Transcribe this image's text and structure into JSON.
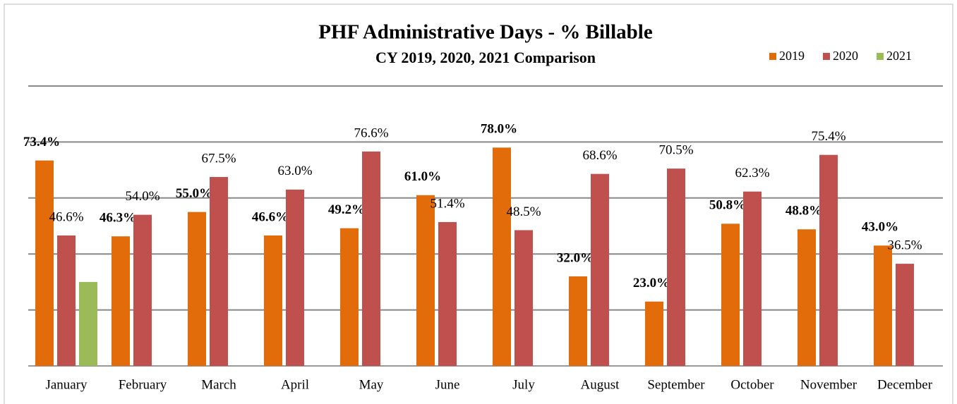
{
  "chart_data": {
    "type": "bar",
    "title": "PHF Administrative Days - % Billable",
    "subtitle": "CY 2019, 2020, 2021 Comparison",
    "categories": [
      "January",
      "February",
      "March",
      "April",
      "May",
      "June",
      "July",
      "August",
      "September",
      "October",
      "November",
      "December"
    ],
    "series": [
      {
        "name": "2019",
        "color": "#e36c0a",
        "values": [
          73.4,
          46.3,
          55.0,
          46.6,
          49.2,
          61.0,
          78.0,
          32.0,
          23.0,
          50.8,
          48.8,
          43.0
        ],
        "value_labels": [
          "73.4%",
          "46.3%",
          "55.0%",
          "46.6%",
          "49.2%",
          "61.0%",
          "78.0%",
          "32.0%",
          "23.0%",
          "50.8%",
          "48.8%",
          "43.0%"
        ]
      },
      {
        "name": "2020",
        "color": "#c0504d",
        "values": [
          46.6,
          54.0,
          67.5,
          63.0,
          76.6,
          51.4,
          48.5,
          68.6,
          70.5,
          62.3,
          75.4,
          36.5
        ],
        "value_labels": [
          "46.6%",
          "54.0%",
          "67.5%",
          "63.0%",
          "76.6%",
          "51.4%",
          "48.5%",
          "68.6%",
          "70.5%",
          "62.3%",
          "75.4%",
          "36.5%"
        ]
      },
      {
        "name": "2021",
        "color": "#9bbb59",
        "values": [
          30,
          null,
          null,
          null,
          null,
          null,
          null,
          null,
          null,
          null,
          null,
          null
        ]
      }
    ],
    "ylim": [
      0,
      100
    ],
    "yticks": [
      0,
      20,
      40,
      60,
      80,
      100
    ],
    "grid": true,
    "legend": "top-right"
  }
}
